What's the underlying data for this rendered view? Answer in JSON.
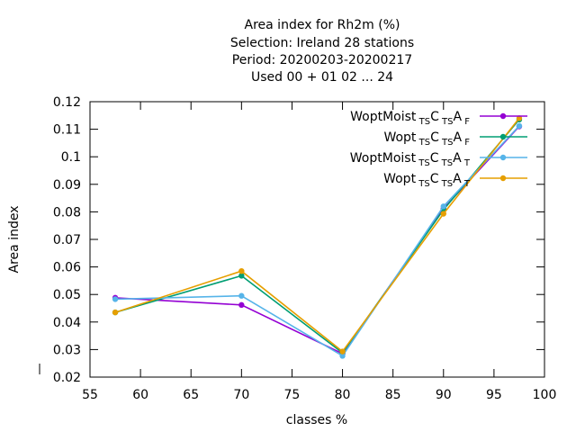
{
  "chart_data": {
    "type": "line",
    "title_lines": [
      "Area index  for Rh2m (%)",
      "Selection: Ireland      28 stations",
      "Period: 20200203-20200217",
      "Used  00 + 01 02 ... 24"
    ],
    "xlabel": "classes %",
    "ylabel": "Area index",
    "xlim": [
      55,
      100
    ],
    "ylim": [
      0.02,
      0.12
    ],
    "xticks": [
      55,
      60,
      65,
      70,
      75,
      80,
      85,
      90,
      95,
      100
    ],
    "xtick_labels": [
      "55",
      "60",
      "65",
      "70",
      "75",
      "80",
      "85",
      "90",
      "95",
      "100"
    ],
    "yticks": [
      0.02,
      0.03,
      0.04,
      0.05,
      0.06,
      0.07,
      0.08,
      0.09,
      0.1,
      0.11,
      0.12
    ],
    "ytick_labels": [
      "0.02",
      "0.03",
      "0.04",
      "0.05",
      "0.06",
      "0.07",
      "0.08",
      "0.09",
      "0.1",
      "0.11",
      "0.12"
    ],
    "grid": false,
    "legend_position": "top-right",
    "series": [
      {
        "name": "WoptMoist",
        "name_sub": "TS",
        "name_mid": "C",
        "name_sub2": "TS",
        "name_end": "A",
        "name_sub3": "F",
        "color": "#9400d3",
        "x": [
          57.5,
          70,
          80,
          90,
          97.5
        ],
        "y": [
          0.0488,
          0.0462,
          0.0285,
          0.0812,
          0.111
        ]
      },
      {
        "name": "Wopt",
        "name_sub": "TS",
        "name_mid": "C",
        "name_sub2": "TS",
        "name_end": "A",
        "name_sub3": "F",
        "color": "#009e73",
        "x": [
          57.5,
          70,
          80,
          90,
          97.5
        ],
        "y": [
          0.0435,
          0.0568,
          0.0288,
          0.0808,
          0.1135
        ]
      },
      {
        "name": "WoptMoist",
        "name_sub": "TS",
        "name_mid": "C",
        "name_sub2": "TS",
        "name_end": "A",
        "name_sub3": "T",
        "color": "#56b4e9",
        "x": [
          57.5,
          70,
          80,
          90,
          97.5
        ],
        "y": [
          0.0483,
          0.0495,
          0.0277,
          0.082,
          0.1112
        ]
      },
      {
        "name": "Wopt",
        "name_sub": "TS",
        "name_mid": "C",
        "name_sub2": "TS",
        "name_end": "A",
        "name_sub3": "T",
        "color": "#e69f00",
        "x": [
          57.5,
          70,
          80,
          90,
          97.5
        ],
        "y": [
          0.0435,
          0.0585,
          0.0293,
          0.0793,
          0.114
        ]
      }
    ]
  }
}
